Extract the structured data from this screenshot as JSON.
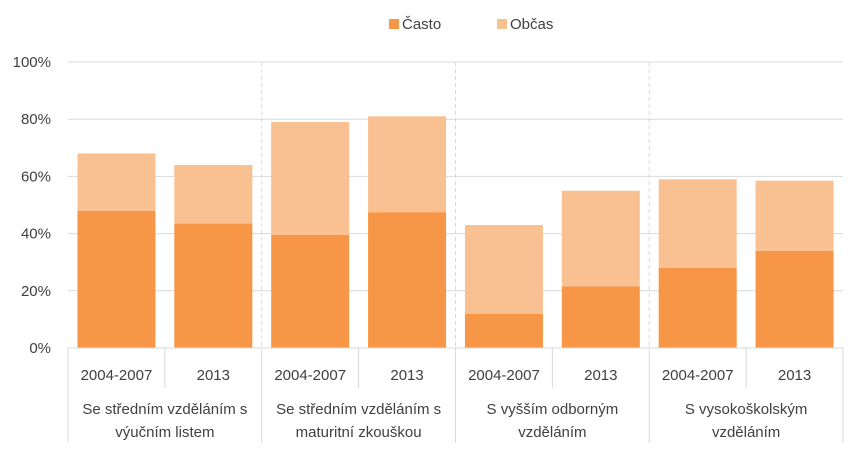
{
  "chart_data": {
    "type": "bar",
    "stacked": true,
    "title": "",
    "xlabel": "",
    "ylabel": "",
    "ylim": [
      0,
      100
    ],
    "yticks": [
      "0%",
      "20%",
      "40%",
      "60%",
      "80%",
      "100%"
    ],
    "grid": "horizontal",
    "legend_position": "top",
    "groups": [
      {
        "label": "Se středním vzděláním s výučním listem",
        "lines": [
          "Se středním vzděláním s",
          "výučním listem"
        ]
      },
      {
        "label": "Se středním vzděláním s maturitní zkouškou",
        "lines": [
          "Se středním vzděláním s",
          "maturitní zkouškou"
        ]
      },
      {
        "label": "S vyšším odborným vzděláním",
        "lines": [
          "S vyšším odborným",
          "vzděláním"
        ]
      },
      {
        "label": "S vysokoškolským vzděláním",
        "lines": [
          "S vysokoškolským",
          "vzděláním"
        ]
      }
    ],
    "categories": [
      "2004-2007",
      "2013",
      "2004-2007",
      "2013",
      "2004-2007",
      "2013",
      "2004-2007",
      "2013"
    ],
    "series": [
      {
        "name": "Často",
        "color": "#f79646",
        "values": [
          48,
          43.5,
          39.5,
          47.5,
          12,
          21.5,
          28,
          34
        ]
      },
      {
        "name": "Občas",
        "color": "#f9c092",
        "values": [
          20,
          20.5,
          39.5,
          33.5,
          31,
          33.5,
          31,
          24.5
        ]
      }
    ]
  }
}
